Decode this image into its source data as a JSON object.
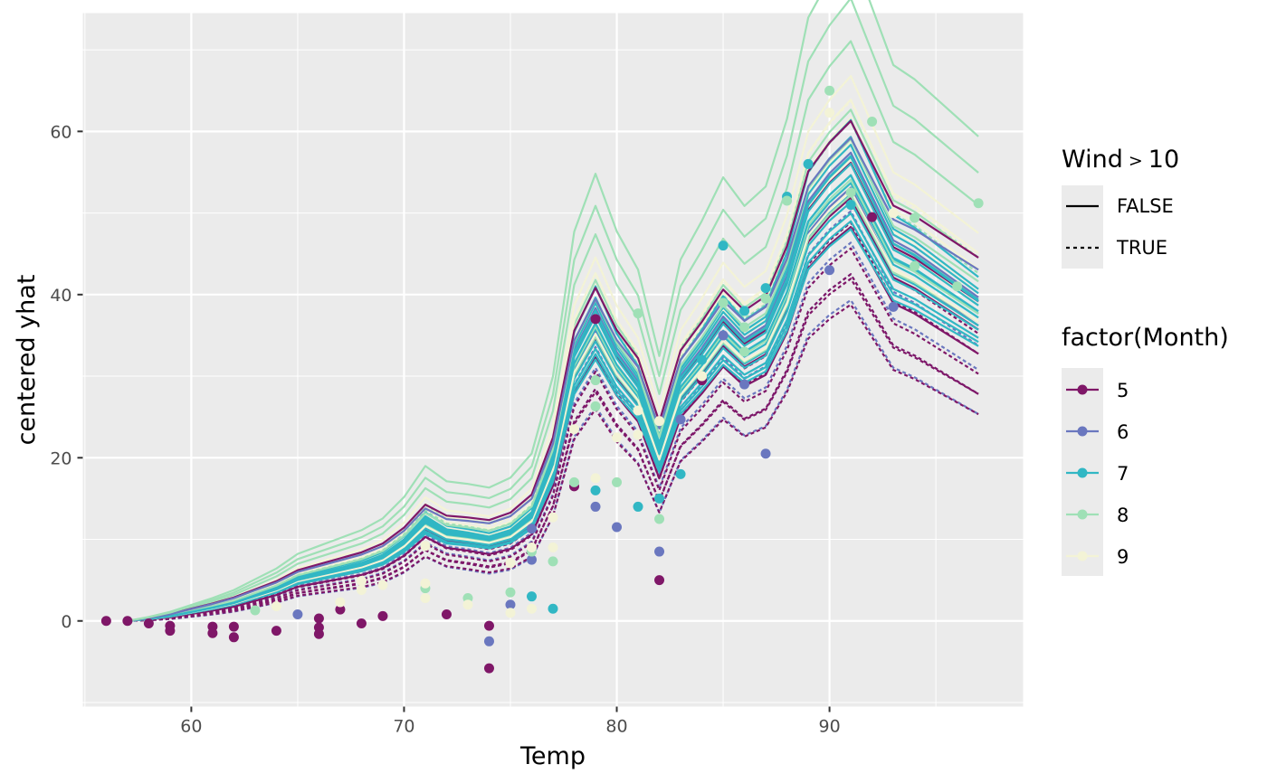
{
  "chart_data": {
    "type": "line",
    "subtype": "centered ICE curves with observed points",
    "xlabel": "Temp",
    "ylabel": "centered yhat",
    "xlim": [
      54.9,
      99.1
    ],
    "ylim": [
      -10.5,
      74.5
    ],
    "x_ticks": [
      60,
      70,
      80,
      90
    ],
    "y_ticks": [
      0,
      20,
      40,
      60
    ],
    "background": "#EBEBEB",
    "grid": true,
    "legend_position": "right",
    "x": [
      57,
      58,
      59,
      60,
      61,
      62,
      63,
      64,
      65,
      66,
      67,
      68,
      69,
      70,
      71,
      72,
      73,
      74,
      75,
      76,
      77,
      78,
      79,
      80,
      81,
      82,
      83,
      84,
      85,
      86,
      87,
      88,
      89,
      90,
      91,
      92,
      93,
      94,
      95,
      96,
      97
    ],
    "base_shape": [
      0,
      0.4,
      0.9,
      1.6,
      2.3,
      3.1,
      4.2,
      5.3,
      6.8,
      7.6,
      8.4,
      9.2,
      10.4,
      12.6,
      15.8,
      14.2,
      13.9,
      13.5,
      14.5,
      17.0,
      25.0,
      40.0,
      46.0,
      40.0,
      36.0,
      27.0,
      37.0,
      41.0,
      45.5,
      42.5,
      44.5,
      51.5,
      62.0,
      66.0,
      69.0,
      63.0,
      57.0,
      55.5,
      53.5,
      51.5,
      49.5
    ],
    "legend_linetype": {
      "title": "Wind > 10",
      "title_main": "Wind",
      "title_op": ">",
      "title_value": "10",
      "entries": [
        {
          "label": "FALSE",
          "dash": "solid"
        },
        {
          "label": "TRUE",
          "dash": "dashed"
        }
      ]
    },
    "legend_color": {
      "title": "factor(Month)",
      "entries": [
        {
          "label": "5",
          "color": "#7F1768"
        },
        {
          "label": "6",
          "color": "#6A77BF"
        },
        {
          "label": "7",
          "color": "#31B7C4"
        },
        {
          "label": "8",
          "color": "#9FE0B6"
        },
        {
          "label": "9",
          "color": "#F3F3D6"
        }
      ]
    },
    "series": [
      {
        "month": "8",
        "wind_gt_10": false,
        "scale": 1.03,
        "offset": 0.0,
        "color": "#9FE0B6"
      },
      {
        "month": "8",
        "wind_gt_10": false,
        "scale": 0.92,
        "offset": -1.0,
        "color": "#9FE0B6"
      },
      {
        "month": "8",
        "wind_gt_10": false,
        "scale": 0.85,
        "offset": -2.5,
        "color": "#9FE0B6"
      },
      {
        "month": "9",
        "wind_gt_10": false,
        "scale": 0.98,
        "offset": -1.0,
        "color": "#F3F3D6"
      },
      {
        "month": "9",
        "wind_gt_10": false,
        "scale": 0.95,
        "offset": -2.0,
        "color": "#F3F3D6"
      },
      {
        "month": "9",
        "wind_gt_10": false,
        "scale": 0.93,
        "offset": -3.0,
        "color": "#F3F3D6"
      },
      {
        "month": "9",
        "wind_gt_10": false,
        "scale": 0.9,
        "offset": -4.0,
        "color": "#F3F3D6"
      },
      {
        "month": "9",
        "wind_gt_10": false,
        "scale": 0.88,
        "offset": -5.0,
        "color": "#F3F3D6"
      },
      {
        "month": "9",
        "wind_gt_10": false,
        "scale": 0.85,
        "offset": -6.0,
        "color": "#F3F3D6"
      },
      {
        "month": "9",
        "wind_gt_10": true,
        "scale": 0.96,
        "offset": -3.0,
        "color": "#F3F3D6"
      },
      {
        "month": "9",
        "wind_gt_10": true,
        "scale": 0.9,
        "offset": -4.5,
        "color": "#F3F3D6"
      },
      {
        "month": "8",
        "wind_gt_10": true,
        "scale": 0.93,
        "offset": -3.5,
        "color": "#9FE0B6"
      },
      {
        "month": "5",
        "wind_gt_10": false,
        "scale": 0.85,
        "offset": -3.0,
        "color": "#7F1768"
      },
      {
        "month": "6",
        "wind_gt_10": false,
        "scale": 0.88,
        "offset": -4.0,
        "color": "#6A77BF"
      },
      {
        "month": "6",
        "wind_gt_10": false,
        "scale": 0.83,
        "offset": -5.0,
        "color": "#6A77BF"
      },
      {
        "month": "6",
        "wind_gt_10": true,
        "scale": 0.8,
        "offset": -6.0,
        "color": "#6A77BF"
      },
      {
        "month": "6",
        "wind_gt_10": true,
        "scale": 0.75,
        "offset": -6.5,
        "color": "#6A77BF"
      },
      {
        "month": "6",
        "wind_gt_10": true,
        "scale": 0.7,
        "offset": -7.0,
        "color": "#6A77BF"
      },
      {
        "month": "6",
        "wind_gt_10": true,
        "scale": 0.66,
        "offset": -7.5,
        "color": "#6A77BF"
      },
      {
        "month": "5",
        "wind_gt_10": true,
        "scale": 0.82,
        "offset": -5.5,
        "color": "#7F1768"
      },
      {
        "month": "5",
        "wind_gt_10": true,
        "scale": 0.78,
        "offset": -6.0,
        "color": "#7F1768"
      },
      {
        "month": "5",
        "wind_gt_10": true,
        "scale": 0.74,
        "offset": -6.5,
        "color": "#7F1768"
      },
      {
        "month": "5",
        "wind_gt_10": true,
        "scale": 0.7,
        "offset": -7.0,
        "color": "#7F1768"
      },
      {
        "month": "5",
        "wind_gt_10": true,
        "scale": 0.68,
        "offset": -6.0,
        "color": "#7F1768"
      },
      {
        "month": "5",
        "wind_gt_10": true,
        "scale": 0.64,
        "offset": -6.5,
        "color": "#7F1768"
      },
      {
        "month": "5",
        "wind_gt_10": false,
        "scale": 0.8,
        "offset": -4.0,
        "color": "#7F1768"
      },
      {
        "month": "5",
        "wind_gt_10": false,
        "scale": 0.76,
        "offset": -5.0,
        "color": "#7F1768"
      },
      {
        "month": "7",
        "wind_gt_10": false,
        "scale": 0.95,
        "offset": -5.0,
        "color": "#31B7C4"
      },
      {
        "month": "7",
        "wind_gt_10": false,
        "scale": 0.92,
        "offset": -5.0,
        "color": "#31B7C4"
      },
      {
        "month": "7",
        "wind_gt_10": false,
        "scale": 0.9,
        "offset": -4.5,
        "color": "#31B7C4"
      },
      {
        "month": "7",
        "wind_gt_10": false,
        "scale": 0.88,
        "offset": -4.5,
        "color": "#31B7C4"
      },
      {
        "month": "7",
        "wind_gt_10": false,
        "scale": 0.86,
        "offset": -4.0,
        "color": "#31B7C4"
      },
      {
        "month": "7",
        "wind_gt_10": false,
        "scale": 0.84,
        "offset": -4.0,
        "color": "#31B7C4"
      },
      {
        "month": "7",
        "wind_gt_10": false,
        "scale": 0.82,
        "offset": -3.5,
        "color": "#31B7C4"
      },
      {
        "month": "7",
        "wind_gt_10": false,
        "scale": 0.8,
        "offset": -3.5,
        "color": "#31B7C4"
      },
      {
        "month": "7",
        "wind_gt_10": false,
        "scale": 0.78,
        "offset": -3.0,
        "color": "#31B7C4"
      },
      {
        "month": "7",
        "wind_gt_10": false,
        "scale": 0.76,
        "offset": -3.0,
        "color": "#31B7C4"
      },
      {
        "month": "7",
        "wind_gt_10": false,
        "scale": 0.74,
        "offset": -2.5,
        "color": "#31B7C4"
      },
      {
        "month": "7",
        "wind_gt_10": false,
        "scale": 0.72,
        "offset": -2.0,
        "color": "#31B7C4"
      },
      {
        "month": "8",
        "wind_gt_10": false,
        "scale": 0.88,
        "offset": -2.0,
        "color": "#9FE0B6"
      },
      {
        "month": "8",
        "wind_gt_10": false,
        "scale": 0.82,
        "offset": -3.0,
        "color": "#9FE0B6"
      },
      {
        "month": "8",
        "wind_gt_10": false,
        "scale": 0.78,
        "offset": -2.0,
        "color": "#9FE0B6"
      },
      {
        "month": "9",
        "wind_gt_10": false,
        "scale": 0.8,
        "offset": -3.0,
        "color": "#F3F3D6"
      },
      {
        "month": "7",
        "wind_gt_10": false,
        "scale": 0.87,
        "offset": -3.8,
        "color": "#31B7C4"
      },
      {
        "month": "7",
        "wind_gt_10": false,
        "scale": 0.83,
        "offset": -3.2,
        "color": "#31B7C4"
      },
      {
        "month": "8",
        "wind_gt_10": false,
        "scale": 1.18,
        "offset": 1.0,
        "color": "#9FE0B6"
      },
      {
        "month": "5",
        "wind_gt_10": false,
        "scale": 0.87,
        "offset": 1.5,
        "color": "#7F1768"
      },
      {
        "month": "6",
        "wind_gt_10": false,
        "scale": 0.84,
        "offset": 1.5,
        "color": "#6A77BF"
      },
      {
        "month": "8",
        "wind_gt_10": false,
        "scale": 1.1,
        "offset": 0.5,
        "color": "#9FE0B6"
      }
    ],
    "points": [
      {
        "x": 56,
        "y": 0.0,
        "month": "5"
      },
      {
        "x": 57,
        "y": 0.0,
        "month": "5"
      },
      {
        "x": 58,
        "y": -0.3,
        "month": "5"
      },
      {
        "x": 59,
        "y": -0.6,
        "month": "5"
      },
      {
        "x": 59,
        "y": -1.2,
        "month": "5"
      },
      {
        "x": 61,
        "y": -0.7,
        "month": "5"
      },
      {
        "x": 61,
        "y": -1.5,
        "month": "5"
      },
      {
        "x": 62,
        "y": -2.0,
        "month": "5"
      },
      {
        "x": 62,
        "y": -0.7,
        "month": "5"
      },
      {
        "x": 64,
        "y": -1.2,
        "month": "5"
      },
      {
        "x": 66,
        "y": 0.3,
        "month": "5"
      },
      {
        "x": 66,
        "y": -1.6,
        "month": "5"
      },
      {
        "x": 66,
        "y": -0.8,
        "month": "5"
      },
      {
        "x": 67,
        "y": 1.4,
        "month": "5"
      },
      {
        "x": 68,
        "y": -0.3,
        "month": "5"
      },
      {
        "x": 69,
        "y": 0.6,
        "month": "5"
      },
      {
        "x": 72,
        "y": 0.8,
        "month": "5"
      },
      {
        "x": 74,
        "y": -0.6,
        "month": "5"
      },
      {
        "x": 74,
        "y": -5.8,
        "month": "5"
      },
      {
        "x": 79,
        "y": 37.0,
        "month": "5"
      },
      {
        "x": 78,
        "y": 16.5,
        "month": "5"
      },
      {
        "x": 82,
        "y": 5.0,
        "month": "5"
      },
      {
        "x": 84,
        "y": 29.5,
        "month": "5"
      },
      {
        "x": 92,
        "y": 49.5,
        "month": "5"
      },
      {
        "x": 65,
        "y": 0.8,
        "month": "6"
      },
      {
        "x": 76,
        "y": 11.3,
        "month": "6"
      },
      {
        "x": 76,
        "y": 7.5,
        "month": "6"
      },
      {
        "x": 75,
        "y": 2.0,
        "month": "6"
      },
      {
        "x": 74,
        "y": -2.5,
        "month": "6"
      },
      {
        "x": 79,
        "y": 14.0,
        "month": "6"
      },
      {
        "x": 80,
        "y": 11.5,
        "month": "6"
      },
      {
        "x": 82,
        "y": 8.5,
        "month": "6"
      },
      {
        "x": 83,
        "y": 24.7,
        "month": "6"
      },
      {
        "x": 85,
        "y": 35.0,
        "month": "6"
      },
      {
        "x": 86,
        "y": 29.0,
        "month": "6"
      },
      {
        "x": 87,
        "y": 20.5,
        "month": "6"
      },
      {
        "x": 90,
        "y": 43.0,
        "month": "6"
      },
      {
        "x": 93,
        "y": 38.5,
        "month": "6"
      },
      {
        "x": 76,
        "y": 3.0,
        "month": "7"
      },
      {
        "x": 77,
        "y": 1.5,
        "month": "7"
      },
      {
        "x": 79,
        "y": 16.0,
        "month": "7"
      },
      {
        "x": 81,
        "y": 14.0,
        "month": "7"
      },
      {
        "x": 82,
        "y": 15.0,
        "month": "7"
      },
      {
        "x": 83,
        "y": 18.0,
        "month": "7"
      },
      {
        "x": 84,
        "y": 32.0,
        "month": "7"
      },
      {
        "x": 85,
        "y": 46.0,
        "month": "7"
      },
      {
        "x": 86,
        "y": 38.0,
        "month": "7"
      },
      {
        "x": 87,
        "y": 40.8,
        "month": "7"
      },
      {
        "x": 88,
        "y": 52.0,
        "month": "7"
      },
      {
        "x": 89,
        "y": 56.0,
        "month": "7"
      },
      {
        "x": 91,
        "y": 51.0,
        "month": "7"
      },
      {
        "x": 63,
        "y": 1.3,
        "month": "8"
      },
      {
        "x": 71,
        "y": 4.0,
        "month": "8"
      },
      {
        "x": 73,
        "y": 2.8,
        "month": "8"
      },
      {
        "x": 75,
        "y": 3.5,
        "month": "8"
      },
      {
        "x": 76,
        "y": 8.5,
        "month": "8"
      },
      {
        "x": 77,
        "y": 7.3,
        "month": "8"
      },
      {
        "x": 78,
        "y": 17.0,
        "month": "8"
      },
      {
        "x": 79,
        "y": 29.5,
        "month": "8"
      },
      {
        "x": 79,
        "y": 26.3,
        "month": "8"
      },
      {
        "x": 80,
        "y": 17.0,
        "month": "8"
      },
      {
        "x": 81,
        "y": 37.7,
        "month": "8"
      },
      {
        "x": 82,
        "y": 12.5,
        "month": "8"
      },
      {
        "x": 84,
        "y": 30.0,
        "month": "8"
      },
      {
        "x": 85,
        "y": 39.0,
        "month": "8"
      },
      {
        "x": 86,
        "y": 36.0,
        "month": "8"
      },
      {
        "x": 86,
        "y": 33.0,
        "month": "8"
      },
      {
        "x": 87,
        "y": 39.5,
        "month": "8"
      },
      {
        "x": 88,
        "y": 51.5,
        "month": "8"
      },
      {
        "x": 90,
        "y": 65.0,
        "month": "8"
      },
      {
        "x": 91,
        "y": 52.5,
        "month": "8"
      },
      {
        "x": 92,
        "y": 61.2,
        "month": "8"
      },
      {
        "x": 94,
        "y": 49.4,
        "month": "8"
      },
      {
        "x": 94,
        "y": 43.5,
        "month": "8"
      },
      {
        "x": 96,
        "y": 41.0,
        "month": "8"
      },
      {
        "x": 97,
        "y": 51.2,
        "month": "8"
      },
      {
        "x": 64,
        "y": 1.8,
        "month": "9"
      },
      {
        "x": 67,
        "y": 2.3,
        "month": "9"
      },
      {
        "x": 68,
        "y": 4.9,
        "month": "9"
      },
      {
        "x": 68,
        "y": 3.8,
        "month": "9"
      },
      {
        "x": 69,
        "y": 4.4,
        "month": "9"
      },
      {
        "x": 71,
        "y": 9.2,
        "month": "9"
      },
      {
        "x": 71,
        "y": 4.6,
        "month": "9"
      },
      {
        "x": 71,
        "y": 2.8,
        "month": "9"
      },
      {
        "x": 73,
        "y": 2.0,
        "month": "9"
      },
      {
        "x": 75,
        "y": 7.1,
        "month": "9"
      },
      {
        "x": 75,
        "y": 1.0,
        "month": "9"
      },
      {
        "x": 76,
        "y": 9.0,
        "month": "9"
      },
      {
        "x": 76,
        "y": 1.5,
        "month": "9"
      },
      {
        "x": 77,
        "y": 12.7,
        "month": "9"
      },
      {
        "x": 77,
        "y": 9.0,
        "month": "9"
      },
      {
        "x": 78,
        "y": 23.5,
        "month": "9"
      },
      {
        "x": 79,
        "y": 17.5,
        "month": "9"
      },
      {
        "x": 80,
        "y": 22.5,
        "month": "9"
      },
      {
        "x": 81,
        "y": 25.8,
        "month": "9"
      },
      {
        "x": 81,
        "y": 22.8,
        "month": "9"
      },
      {
        "x": 82,
        "y": 24.5,
        "month": "9"
      },
      {
        "x": 84,
        "y": 30.0,
        "month": "9"
      },
      {
        "x": 90,
        "y": 62.3,
        "month": "9"
      },
      {
        "x": 93,
        "y": 50.0,
        "month": "9"
      }
    ]
  }
}
